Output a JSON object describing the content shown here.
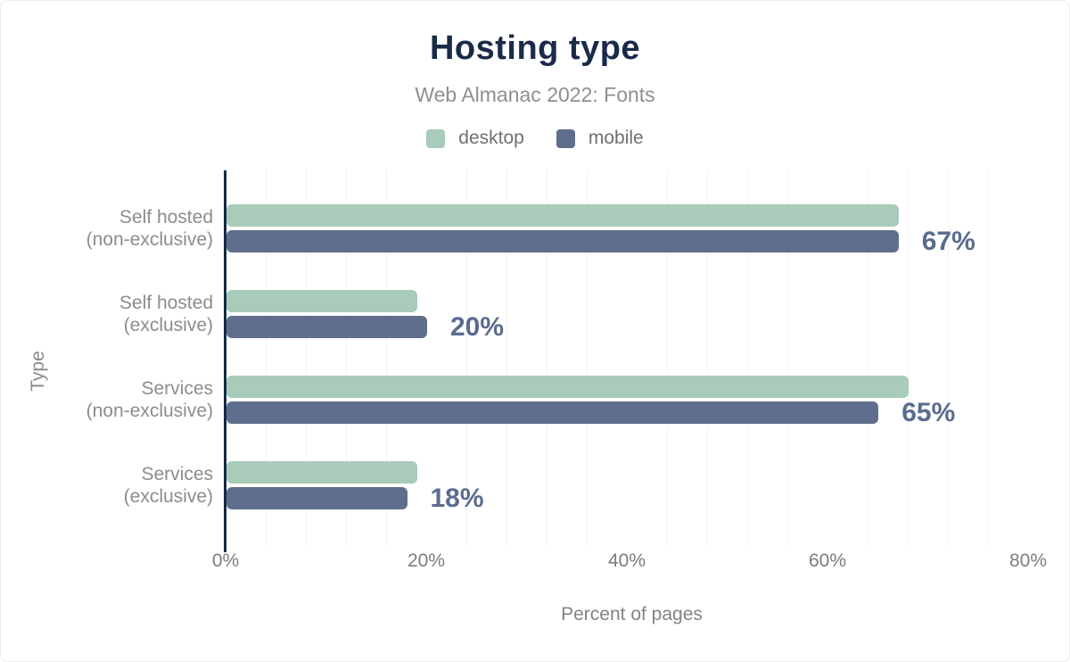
{
  "title": "Hosting type",
  "subtitle": "Web Almanac 2022: Fonts",
  "legend": [
    {
      "label": "desktop"
    },
    {
      "label": "mobile"
    }
  ],
  "chart_data": {
    "type": "bar",
    "orientation": "horizontal",
    "title": "Hosting type",
    "subtitle": "Web Almanac 2022: Fonts",
    "xlabel": "Percent of pages",
    "ylabel": "Type",
    "categories": [
      [
        "Self hosted",
        "(non-exclusive)"
      ],
      [
        "Self hosted",
        "(exclusive)"
      ],
      [
        "Services",
        "(non-exclusive)"
      ],
      [
        "Services",
        "(exclusive)"
      ]
    ],
    "series": [
      {
        "name": "desktop",
        "color": "#a8cbba",
        "values": [
          67,
          19,
          68,
          19
        ]
      },
      {
        "name": "mobile",
        "color": "#5e6e8c",
        "values": [
          67,
          20,
          65,
          18
        ]
      }
    ],
    "value_labels": [
      "67%",
      "20%",
      "65%",
      "18%"
    ],
    "value_labels_series": "mobile",
    "x_ticks": [
      "0%",
      "20%",
      "40%",
      "60%",
      "80%"
    ],
    "x_tick_values": [
      0,
      20,
      40,
      60,
      80
    ],
    "xlim": [
      0,
      80
    ],
    "grid": {
      "on": true,
      "step_pct": 4,
      "major_step_pct": 20
    },
    "legend_position": "top"
  },
  "colors": {
    "title": "#1a2b49",
    "axis": "#152b46",
    "muted": "#8c8c8c",
    "datalabel": "#5a6c8e",
    "grid": "#f2f2f2",
    "grid_major": "#e7e7e7",
    "tick": "#7c7c7c"
  }
}
